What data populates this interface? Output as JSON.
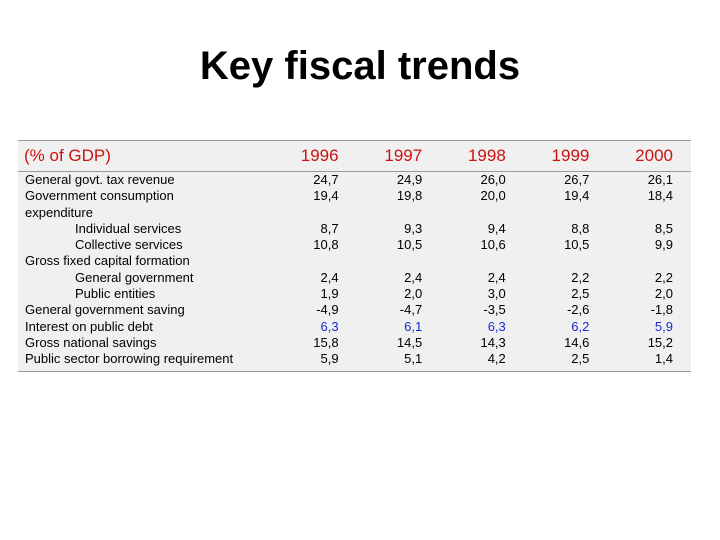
{
  "title": "Key fiscal trends",
  "table": {
    "header_label": "(% of GDP)",
    "years": [
      "1996",
      "1997",
      "1998",
      "1999",
      "2000"
    ],
    "rows": [
      {
        "label": "General govt. tax revenue",
        "indent": false,
        "highlight": false,
        "values": [
          "24,7",
          "24,9",
          "26,0",
          "26,7",
          "26,1"
        ]
      },
      {
        "label": "Government consumption",
        "indent": false,
        "highlight": false,
        "values": [
          "19,4",
          "19,8",
          "20,0",
          "19,4",
          "18,4"
        ]
      },
      {
        "label": "expenditure",
        "indent": false,
        "highlight": false,
        "values": [
          "",
          "",
          "",
          "",
          ""
        ]
      },
      {
        "label": "Individual services",
        "indent": true,
        "highlight": false,
        "values": [
          "8,7",
          "9,3",
          "9,4",
          "8,8",
          "8,5"
        ]
      },
      {
        "label": "Collective services",
        "indent": true,
        "highlight": false,
        "values": [
          "10,8",
          "10,5",
          "10,6",
          "10,5",
          "9,9"
        ]
      },
      {
        "label": "Gross fixed capital formation",
        "indent": false,
        "highlight": false,
        "values": [
          "",
          "",
          "",
          "",
          ""
        ]
      },
      {
        "label": "General government",
        "indent": true,
        "highlight": false,
        "values": [
          "2,4",
          "2,4",
          "2,4",
          "2,2",
          "2,2"
        ]
      },
      {
        "label": "Public entities",
        "indent": true,
        "highlight": false,
        "values": [
          "1,9",
          "2,0",
          "3,0",
          "2,5",
          "2,0"
        ]
      },
      {
        "label": "General government saving",
        "indent": false,
        "highlight": false,
        "values": [
          "-4,9",
          "-4,7",
          "-3,5",
          "-2,6",
          "-1,8"
        ]
      },
      {
        "label": "Interest on public debt",
        "indent": false,
        "highlight": true,
        "values": [
          "6,3",
          "6,1",
          "6,3",
          "6,2",
          "5,9"
        ]
      },
      {
        "label": "Gross national savings",
        "indent": false,
        "highlight": false,
        "values": [
          "15,8",
          "14,5",
          "14,3",
          "14,6",
          "15,2"
        ]
      },
      {
        "label": "Public sector borrowing requirement",
        "indent": false,
        "highlight": false,
        "values": [
          "5,9",
          "5,1",
          "4,2",
          "2,5",
          "1,4"
        ]
      }
    ]
  },
  "colors": {
    "header_text": "#cc1111",
    "highlight_values": "#1a2ad0",
    "table_background": "#f0f0f0"
  }
}
